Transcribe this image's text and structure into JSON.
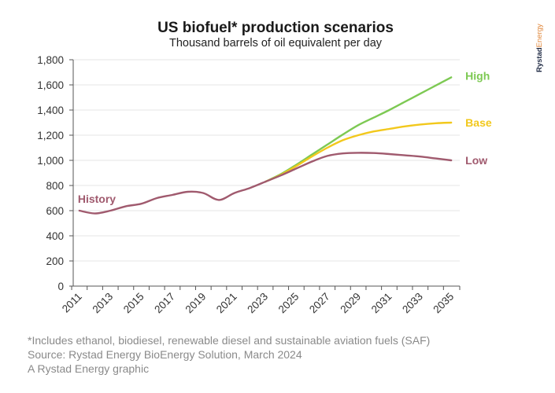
{
  "brand": {
    "part1": "Rystad",
    "part2": "Energy"
  },
  "chart_data": {
    "type": "line",
    "title": "US biofuel* production scenarios",
    "subtitle": "Thousand barrels of oil equivalent per day",
    "xlabel": "",
    "ylabel": "",
    "ylim": [
      0,
      1800
    ],
    "xlim": [
      2010.6,
      2035.55
    ],
    "yticks": [
      0,
      200,
      400,
      600,
      800,
      1000,
      1200,
      1400,
      1600,
      1800
    ],
    "ytick_labels": [
      "0",
      "200",
      "400",
      "600",
      "800",
      "1,000",
      "1,200",
      "1,400",
      "1,600",
      "1,800"
    ],
    "xticks": [
      2011,
      2013,
      2015,
      2017,
      2019,
      2021,
      2023,
      2025,
      2027,
      2029,
      2031,
      2033,
      2035
    ],
    "xtick_labels": [
      "2011",
      "2013",
      "2015",
      "2017",
      "2019",
      "2021",
      "2023",
      "2025",
      "2027",
      "2029",
      "2031",
      "2033",
      "2035"
    ],
    "grid": true,
    "legend": "inline-right",
    "series": [
      {
        "name": "History",
        "label": "History",
        "color": "#a05a6e",
        "x": [
          2011,
          2012,
          2013,
          2014,
          2015,
          2016,
          2017,
          2018,
          2019,
          2020,
          2021,
          2022,
          2023
        ],
        "values": [
          600,
          578,
          600,
          635,
          655,
          700,
          725,
          750,
          740,
          685,
          740,
          780,
          830
        ]
      },
      {
        "name": "High",
        "label": "High",
        "color": "#7dc953",
        "x": [
          2023,
          2024,
          2025,
          2026,
          2027,
          2028,
          2029,
          2030,
          2031,
          2032,
          2033,
          2034,
          2035
        ],
        "values": [
          830,
          890,
          965,
          1045,
          1125,
          1205,
          1280,
          1340,
          1400,
          1465,
          1530,
          1595,
          1660
        ]
      },
      {
        "name": "Base",
        "label": "Base",
        "color": "#f2c81c",
        "x": [
          2023,
          2024,
          2025,
          2026,
          2027,
          2028,
          2029,
          2030,
          2031,
          2032,
          2033,
          2034,
          2035
        ],
        "values": [
          830,
          885,
          955,
          1030,
          1100,
          1160,
          1200,
          1230,
          1250,
          1270,
          1285,
          1295,
          1300
        ]
      },
      {
        "name": "Low",
        "label": "Low",
        "color": "#a05a6e",
        "x": [
          2023,
          2024,
          2025,
          2026,
          2027,
          2028,
          2029,
          2030,
          2031,
          2032,
          2033,
          2034,
          2035
        ],
        "values": [
          830,
          880,
          935,
          990,
          1035,
          1055,
          1060,
          1058,
          1050,
          1040,
          1030,
          1015,
          1000
        ]
      }
    ]
  },
  "footer": {
    "note": "*Includes ethanol, biodiesel, renewable diesel and sustainable aviation fuels (SAF)",
    "source": "Source: Rystad Energy BioEnergy Solution, March 2024",
    "credit": "A Rystad Energy graphic"
  }
}
